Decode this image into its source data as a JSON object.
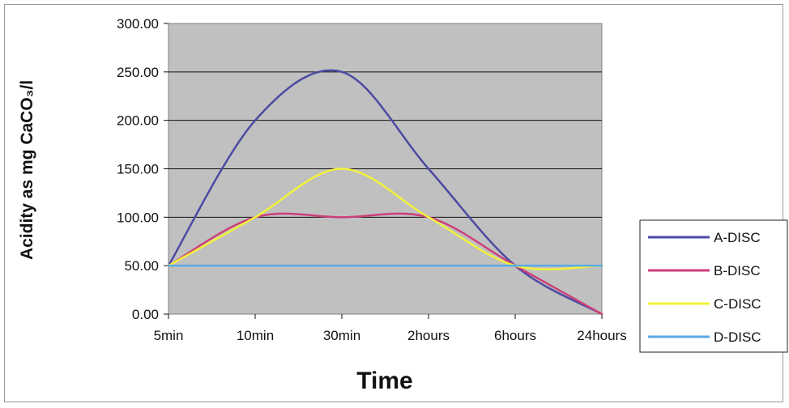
{
  "chart_data": {
    "type": "line",
    "categories": [
      "5min",
      "10min",
      "30min",
      "2hours",
      "6hours",
      "24hours"
    ],
    "series": [
      {
        "name": "A-DISC",
        "values": [
          50,
          200,
          250,
          150,
          50,
          0
        ],
        "color": "#4b4aa3"
      },
      {
        "name": "B-DISC",
        "values": [
          50,
          100,
          100,
          100,
          50,
          0
        ],
        "color": "#cc3f7a"
      },
      {
        "name": "C-DISC",
        "values": [
          50,
          100,
          150,
          100,
          50,
          50
        ],
        "color": "#f2f23a"
      },
      {
        "name": "D-DISC",
        "values": [
          50,
          50,
          50,
          50,
          50,
          50
        ],
        "color": "#5aaae6"
      }
    ],
    "title": "",
    "xlabel": "Time",
    "ylabel": "Acidity as mg CaCO₃/l",
    "ylim": [
      0,
      300
    ],
    "yticks": [
      "0.00",
      "50.00",
      "100.00",
      "150.00",
      "200.00",
      "250.00",
      "300.00"
    ],
    "grid": true,
    "legend_position": "right",
    "plot_background": "#c0c0c0"
  }
}
